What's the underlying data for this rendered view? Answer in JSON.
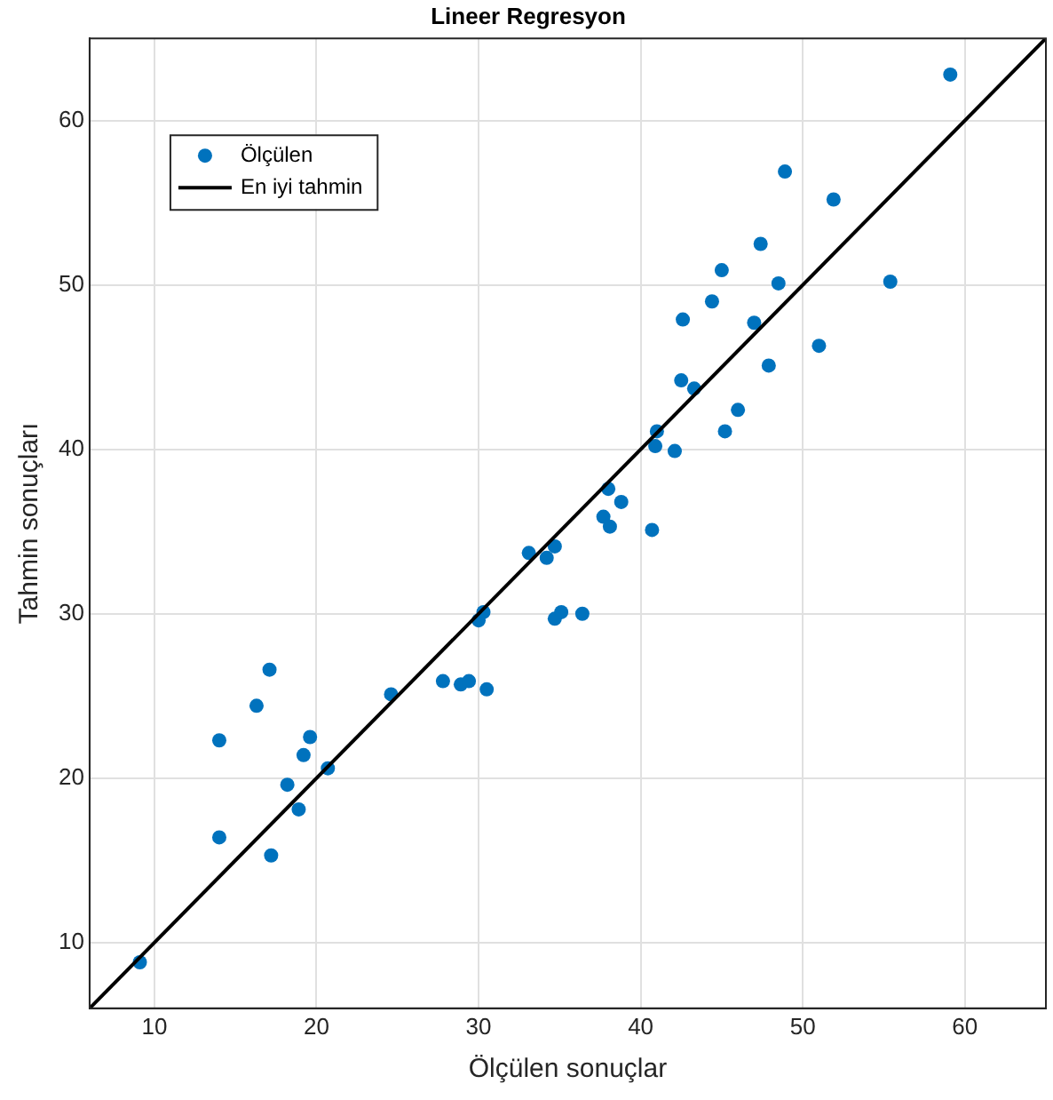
{
  "chart_data": {
    "type": "scatter",
    "title": "Lineer Regresyon",
    "xlabel": "Ölçülen sonuçlar",
    "ylabel": "Tahmin sonuçları",
    "xlim": [
      6,
      65
    ],
    "ylim": [
      6,
      65
    ],
    "xticks": [
      10,
      20,
      30,
      40,
      50,
      60
    ],
    "yticks": [
      10,
      20,
      30,
      40,
      50,
      60
    ],
    "grid": true,
    "legend": "top left",
    "series": [
      {
        "name": "Ölçülen",
        "marker": "circle",
        "color": "#0072bd",
        "x": [
          9.1,
          14.0,
          14.0,
          16.3,
          17.1,
          17.2,
          18.2,
          18.9,
          19.2,
          19.6,
          20.7,
          24.6,
          27.8,
          28.9,
          29.4,
          30.5,
          30.0,
          30.3,
          34.7,
          35.1,
          36.4,
          33.1,
          34.2,
          34.7,
          38.0,
          38.8,
          37.7,
          38.1,
          40.7,
          47.4,
          45.0,
          48.5,
          44.4,
          42.6,
          47.0,
          55.4,
          51.0,
          47.9,
          42.5,
          43.3,
          46.0,
          45.2,
          41.0,
          40.9,
          42.1,
          59.1,
          48.9,
          51.9
        ],
        "values": [
          8.8,
          16.4,
          22.3,
          24.4,
          26.6,
          15.3,
          19.6,
          18.1,
          21.4,
          22.5,
          20.6,
          25.1,
          25.9,
          25.7,
          25.9,
          25.4,
          29.6,
          30.1,
          29.7,
          30.1,
          30.0,
          33.7,
          33.4,
          34.1,
          37.6,
          36.8,
          35.9,
          35.3,
          35.1,
          52.5,
          50.9,
          50.1,
          49.0,
          47.9,
          47.7,
          50.2,
          46.3,
          45.1,
          44.2,
          43.7,
          42.4,
          41.1,
          41.1,
          40.2,
          39.9,
          62.8,
          56.9,
          55.2
        ]
      },
      {
        "name": "En iyi tahmin",
        "type": "line",
        "marker": "none",
        "color": "#000000",
        "line_style": "solid",
        "x": [
          6,
          65
        ],
        "values": [
          6,
          65
        ]
      }
    ]
  }
}
